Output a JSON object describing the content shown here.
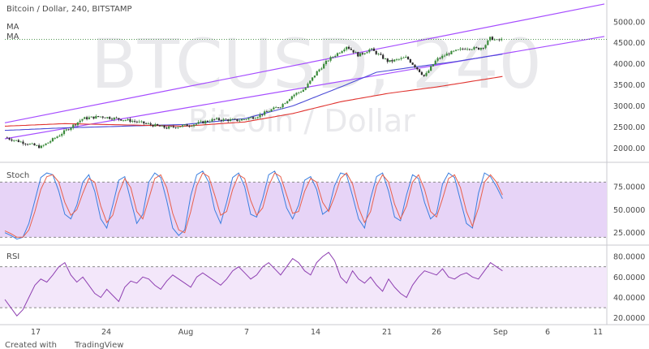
{
  "header": {
    "title": "Bitcoin / Dollar, 240, BITSTAMP",
    "ma_label_1": "MA",
    "ma_label_2": "MA"
  },
  "watermark": {
    "symbol": "BTCUSD, 240",
    "name": "Bitcoin / Dollar"
  },
  "footer": {
    "created_with": "Created with",
    "brand": "TradingView"
  },
  "colors": {
    "up_candle": "#3a8a3a",
    "down_candle": "#2b2b2b",
    "channel": "#a64dff",
    "ma_fast": "#4a4ad6",
    "ma_slow": "#e0332f",
    "stoch_k": "#3b7fe0",
    "stoch_d": "#e8604c",
    "stoch_band": "#e7d4f7",
    "rsi_line": "#8e3fb1",
    "rsi_band": "#f3e7fa"
  },
  "chart_data": [
    {
      "type": "candlestick",
      "title": "Bitcoin / Dollar, 240, BITSTAMP",
      "x_ticks": [
        "17",
        "24",
        "Aug",
        "7",
        "14",
        "21",
        "26",
        "Sep",
        "6",
        "11"
      ],
      "y_ticks": [
        "5000.00",
        "4500.00",
        "4000.00",
        "3500.00",
        "3000.00",
        "2500.00",
        "2000.00"
      ],
      "ylim": [
        1700,
        5400
      ],
      "current_price": 4580,
      "price_path": [
        [
          0,
          2250
        ],
        [
          6,
          2020
        ],
        [
          9,
          2300
        ],
        [
          13,
          2700
        ],
        [
          16,
          2750
        ],
        [
          21,
          2650
        ],
        [
          27,
          2480
        ],
        [
          31,
          2550
        ],
        [
          35,
          2680
        ],
        [
          39,
          2660
        ],
        [
          42,
          2750
        ],
        [
          44,
          2880
        ],
        [
          46,
          3000
        ],
        [
          48,
          3250
        ],
        [
          50,
          3400
        ],
        [
          52,
          3800
        ],
        [
          54,
          4100
        ],
        [
          56,
          4300
        ],
        [
          57,
          4420
        ],
        [
          59,
          4200
        ],
        [
          61,
          4350
        ],
        [
          64,
          4050
        ],
        [
          67,
          4150
        ],
        [
          69,
          3850
        ],
        [
          70,
          3700
        ],
        [
          72,
          4100
        ],
        [
          74,
          4250
        ],
        [
          77,
          4380
        ],
        [
          79,
          4360
        ],
        [
          80,
          4420
        ],
        [
          81,
          4620
        ],
        [
          82,
          4550
        ],
        [
          83,
          4580
        ]
      ],
      "series": [
        {
          "name": "MA",
          "kind": "line",
          "color": "#4a4ad6",
          "path": [
            [
              0,
              2420
            ],
            [
              10,
              2480
            ],
            [
              20,
              2520
            ],
            [
              30,
              2560
            ],
            [
              40,
              2700
            ],
            [
              48,
              3000
            ],
            [
              56,
              3450
            ],
            [
              62,
              3800
            ],
            [
              68,
              3920
            ],
            [
              75,
              4050
            ],
            [
              83,
              4230
            ]
          ]
        },
        {
          "name": "MA",
          "kind": "line",
          "color": "#e0332f",
          "path": [
            [
              0,
              2520
            ],
            [
              10,
              2580
            ],
            [
              20,
              2550
            ],
            [
              30,
              2520
            ],
            [
              40,
              2620
            ],
            [
              48,
              2820
            ],
            [
              56,
              3100
            ],
            [
              64,
              3300
            ],
            [
              72,
              3450
            ],
            [
              83,
              3700
            ]
          ]
        }
      ],
      "channel": {
        "upper": [
          [
            0,
            2600
          ],
          [
            100,
            5420
          ]
        ],
        "lower": [
          [
            0,
            2220
          ],
          [
            100,
            4650
          ]
        ]
      }
    },
    {
      "type": "line",
      "title": "Stoch",
      "y_ticks": [
        "75.0000",
        "50.0000",
        "25.0000"
      ],
      "ylim": [
        15,
        98
      ],
      "band": [
        20,
        80
      ],
      "series": [
        {
          "name": "%K",
          "values": [
            25,
            22,
            18,
            20,
            35,
            60,
            85,
            90,
            88,
            70,
            45,
            40,
            55,
            80,
            88,
            70,
            40,
            30,
            55,
            82,
            86,
            60,
            35,
            45,
            80,
            90,
            85,
            60,
            30,
            22,
            28,
            65,
            88,
            92,
            80,
            50,
            35,
            58,
            85,
            90,
            75,
            45,
            42,
            62,
            88,
            92,
            78,
            52,
            40,
            55,
            82,
            86,
            72,
            45,
            50,
            76,
            90,
            88,
            65,
            40,
            30,
            62,
            86,
            90,
            70,
            42,
            38,
            66,
            88,
            84,
            58,
            40,
            46,
            78,
            90,
            85,
            60,
            35,
            30,
            68,
            90,
            86,
            75,
            62
          ]
        },
        {
          "name": "%D",
          "values": [
            27,
            24,
            20,
            20,
            28,
            48,
            72,
            86,
            88,
            80,
            58,
            44,
            50,
            68,
            84,
            80,
            54,
            36,
            44,
            68,
            84,
            74,
            48,
            40,
            62,
            84,
            88,
            74,
            46,
            28,
            25,
            48,
            76,
            90,
            86,
            66,
            44,
            48,
            72,
            88,
            84,
            60,
            44,
            52,
            76,
            90,
            86,
            66,
            46,
            48,
            70,
            84,
            80,
            58,
            48,
            64,
            84,
            90,
            78,
            52,
            36,
            48,
            76,
            88,
            80,
            56,
            40,
            54,
            80,
            88,
            72,
            48,
            42,
            62,
            84,
            88,
            74,
            48,
            32,
            52,
            80,
            88,
            80,
            66
          ]
        }
      ]
    },
    {
      "type": "line",
      "title": "RSI",
      "y_ticks": [
        "80.0000",
        "60.0000",
        "40.0000",
        "20.0000"
      ],
      "ylim": [
        15,
        88
      ],
      "band": [
        30,
        70
      ],
      "series": [
        {
          "name": "RSI",
          "values": [
            38,
            30,
            22,
            28,
            40,
            52,
            58,
            55,
            62,
            70,
            74,
            62,
            55,
            60,
            52,
            44,
            40,
            48,
            42,
            36,
            50,
            56,
            54,
            60,
            58,
            52,
            48,
            56,
            62,
            58,
            54,
            50,
            60,
            64,
            60,
            56,
            52,
            58,
            66,
            70,
            64,
            58,
            62,
            70,
            74,
            68,
            62,
            70,
            78,
            74,
            66,
            62,
            74,
            80,
            84,
            76,
            60,
            54,
            66,
            58,
            54,
            60,
            52,
            46,
            58,
            50,
            44,
            40,
            52,
            60,
            66,
            64,
            62,
            68,
            60,
            58,
            62,
            64,
            60,
            58,
            66,
            74,
            70,
            66
          ]
        }
      ]
    }
  ]
}
